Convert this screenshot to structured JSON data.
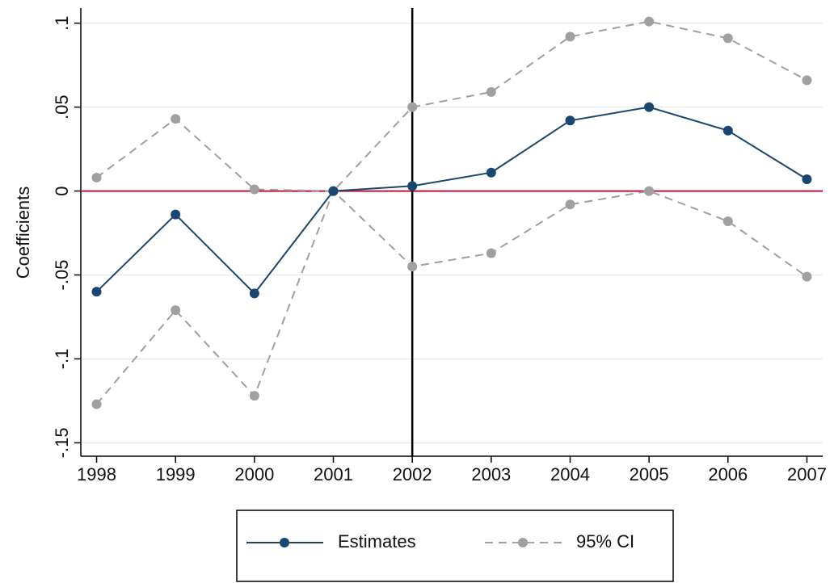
{
  "chart_data": {
    "type": "line",
    "y_label": "Coefficients",
    "x": [
      1998,
      1999,
      2000,
      2001,
      2002,
      2003,
      2004,
      2005,
      2006,
      2007
    ],
    "xlim": [
      1997.8,
      2007.2
    ],
    "xticks": [
      1998,
      1999,
      2000,
      2001,
      2002,
      2003,
      2004,
      2005,
      2006,
      2007
    ],
    "ylim": [
      -0.158,
      0.109
    ],
    "yticks": [
      {
        "value": 0.1,
        "label": ".1"
      },
      {
        "value": 0.05,
        "label": ".05"
      },
      0,
      {
        "value": -0.05,
        "label": "-.05"
      },
      {
        "value": -0.1,
        "label": "-.1"
      },
      {
        "value": -0.15,
        "label": "-.15"
      }
    ],
    "grid": true,
    "series": [
      {
        "name": "Estimates",
        "color": "#1a476f",
        "values": [
          -0.06,
          -0.014,
          -0.061,
          0,
          0.003,
          0.011,
          0.042,
          0.05,
          0.036,
          0.007
        ]
      }
    ],
    "ci": {
      "name": "95% CI",
      "color": "#a0a0a0",
      "upper": [
        0.008,
        0.043,
        0.001,
        0,
        0.05,
        0.059,
        0.092,
        0.101,
        0.091,
        0.066
      ],
      "lower": [
        -0.127,
        -0.071,
        -0.122,
        0,
        -0.045,
        -0.037,
        -0.008,
        0,
        -0.018,
        -0.051
      ]
    },
    "vline": {
      "value": 2002,
      "color": "#000000"
    },
    "hline": {
      "value": 0,
      "color": "#c0143c"
    },
    "legend": "bottom"
  }
}
